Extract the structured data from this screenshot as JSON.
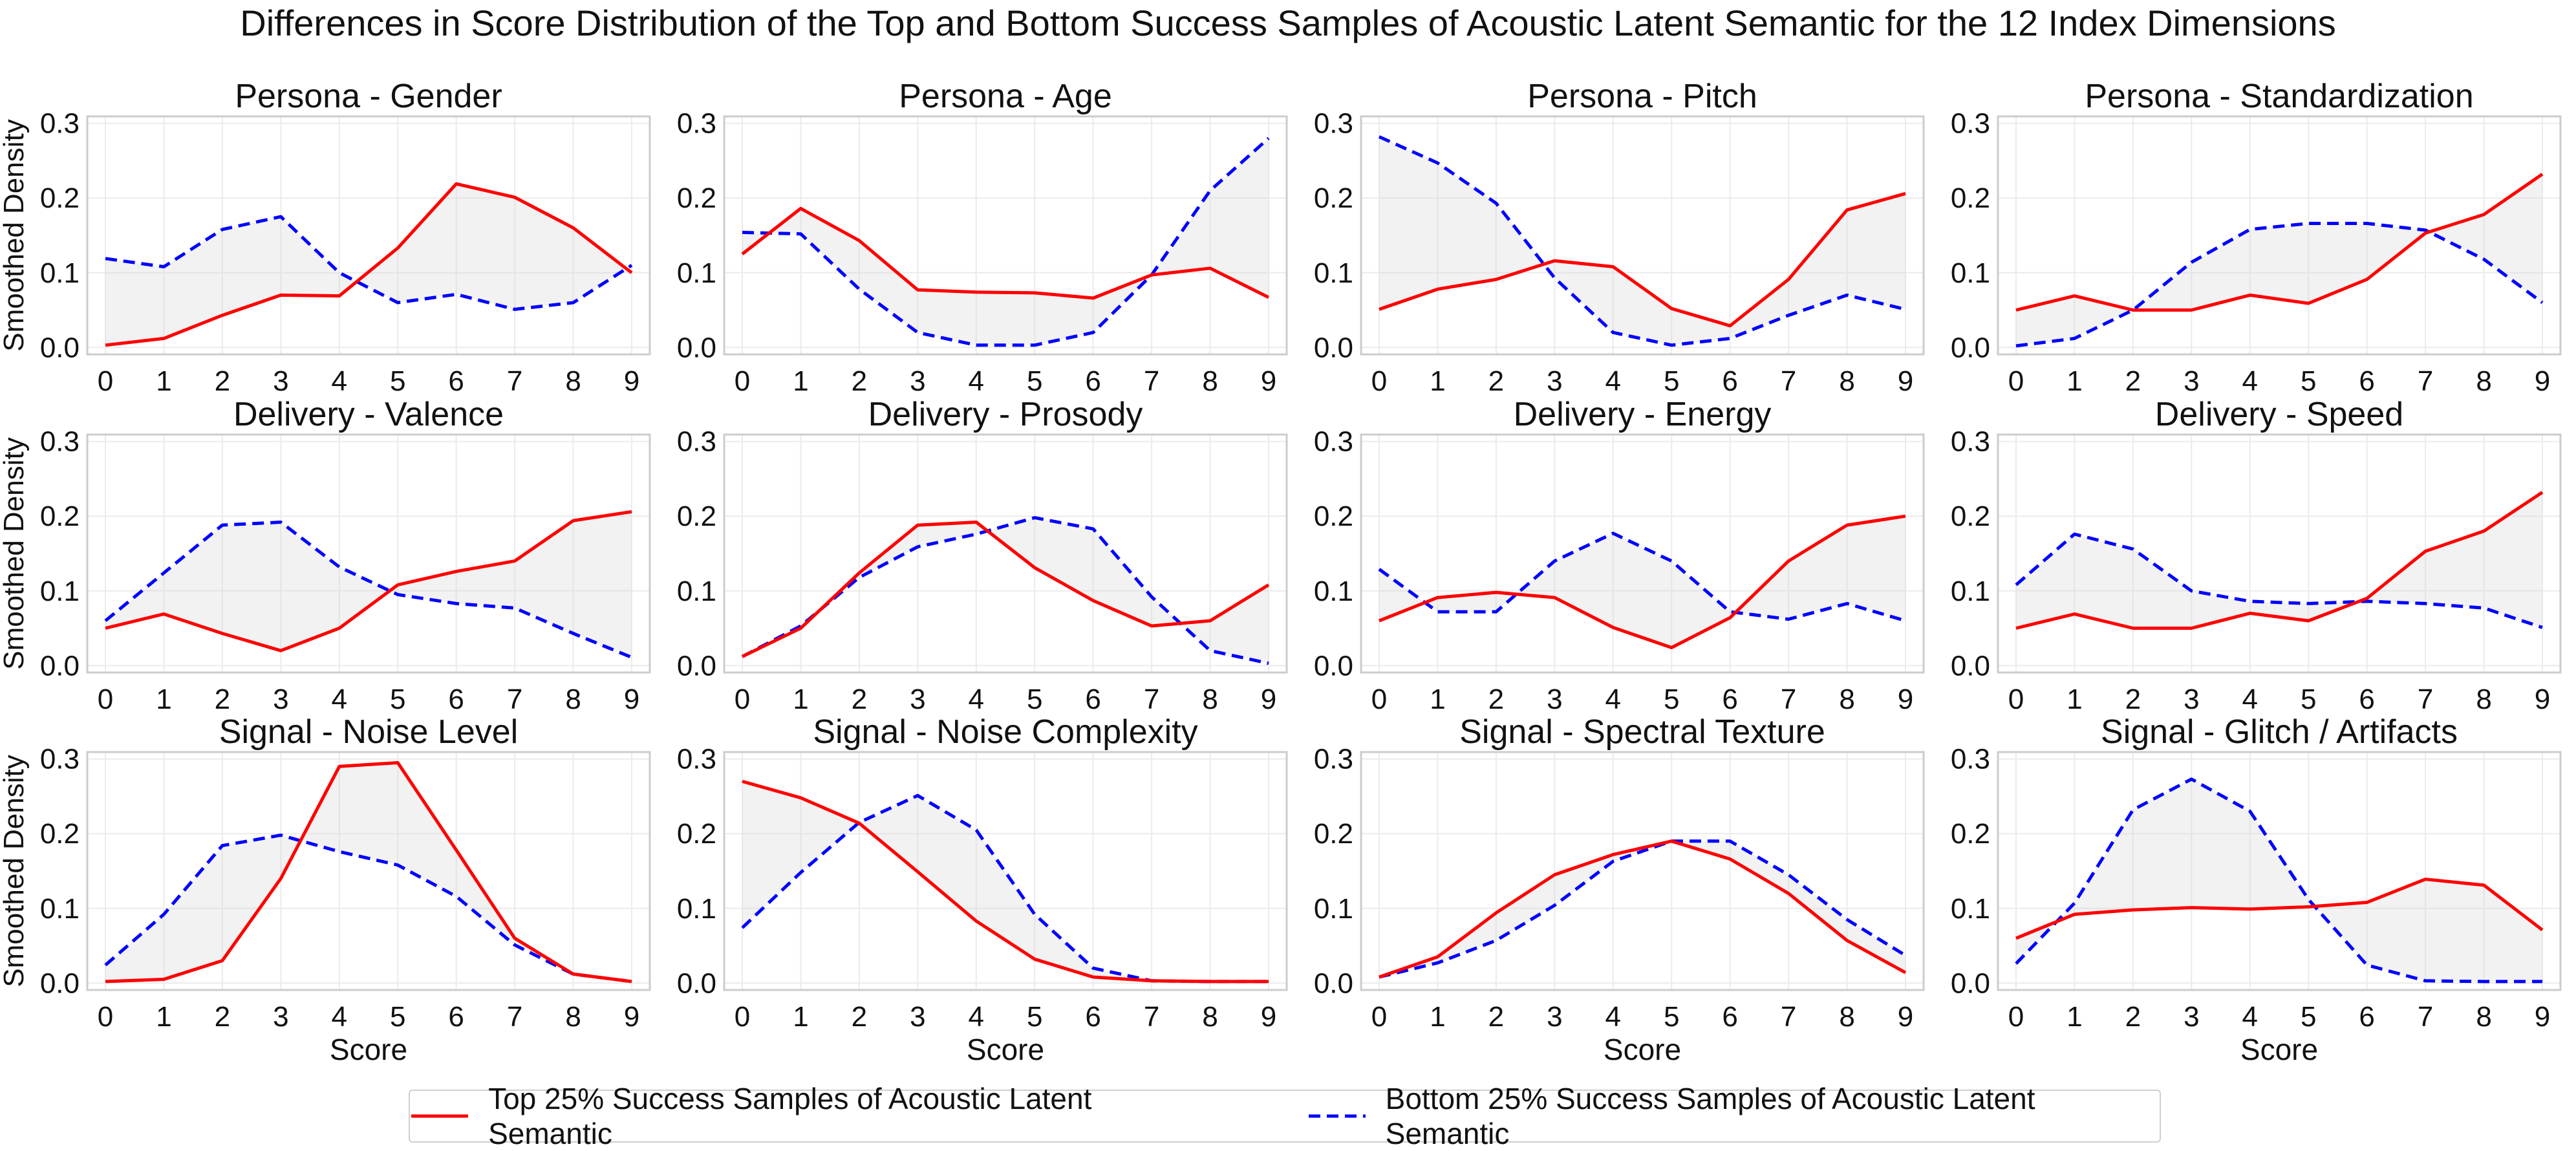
{
  "figure": {
    "title": "Differences in Score Distribution of the Top and Bottom Success Samples of Acoustic Latent Semantic for the 12 Index Dimensions"
  },
  "axis_labels": {
    "xlabel": "Score",
    "ylabel": "Smoothed Density"
  },
  "legend": {
    "placement": "bottom-center",
    "top_label": "Top 25% Success Samples of Acoustic Latent Semantic",
    "bottom_label": "Bottom 25% Success Samples of Acoustic Latent Semantic"
  },
  "colors": {
    "top": "#ff0000",
    "bottom": "#0000ff",
    "fill": "#d3d3d3",
    "grid": "#ebebeb",
    "frame": "#cccccc"
  },
  "chart_data": [
    {
      "type": "line",
      "title": "Persona - Gender",
      "x": [
        0,
        1,
        2,
        3,
        4,
        5,
        6,
        7,
        8,
        9
      ],
      "ylim": [
        0,
        0.3
      ],
      "grid": true,
      "series": [
        {
          "name": "Top 25% Success Samples of Acoustic Latent Semantic",
          "values": [
            0.003,
            0.012,
            0.043,
            0.07,
            0.069,
            0.133,
            0.219,
            0.201,
            0.16,
            0.1
          ]
        },
        {
          "name": "Bottom 25% Success Samples of Acoustic Latent Semantic",
          "values": [
            0.119,
            0.108,
            0.158,
            0.175,
            0.1,
            0.06,
            0.071,
            0.051,
            0.06,
            0.11
          ]
        }
      ]
    },
    {
      "type": "line",
      "title": "Persona - Age",
      "x": [
        0,
        1,
        2,
        3,
        4,
        5,
        6,
        7,
        8,
        9
      ],
      "ylim": [
        0,
        0.3
      ],
      "grid": true,
      "series": [
        {
          "name": "Top 25% Success Samples of Acoustic Latent Semantic",
          "values": [
            0.125,
            0.186,
            0.143,
            0.077,
            0.074,
            0.073,
            0.066,
            0.097,
            0.106,
            0.067
          ]
        },
        {
          "name": "Bottom 25% Success Samples of Acoustic Latent Semantic",
          "values": [
            0.154,
            0.152,
            0.078,
            0.02,
            0.003,
            0.003,
            0.02,
            0.097,
            0.21,
            0.28
          ]
        }
      ]
    },
    {
      "type": "line",
      "title": "Persona - Pitch",
      "x": [
        0,
        1,
        2,
        3,
        4,
        5,
        6,
        7,
        8,
        9
      ],
      "ylim": [
        0,
        0.3
      ],
      "grid": true,
      "series": [
        {
          "name": "Top 25% Success Samples of Acoustic Latent Semantic",
          "values": [
            0.051,
            0.078,
            0.091,
            0.116,
            0.108,
            0.052,
            0.029,
            0.091,
            0.184,
            0.206
          ]
        },
        {
          "name": "Bottom 25% Success Samples of Acoustic Latent Semantic",
          "values": [
            0.282,
            0.247,
            0.193,
            0.093,
            0.02,
            0.003,
            0.012,
            0.043,
            0.07,
            0.051
          ]
        }
      ]
    },
    {
      "type": "line",
      "title": "Persona - Standardization",
      "x": [
        0,
        1,
        2,
        3,
        4,
        5,
        6,
        7,
        8,
        9
      ],
      "ylim": [
        0,
        0.3
      ],
      "grid": true,
      "series": [
        {
          "name": "Top 25% Success Samples of Acoustic Latent Semantic",
          "values": [
            0.05,
            0.069,
            0.05,
            0.05,
            0.07,
            0.059,
            0.091,
            0.153,
            0.178,
            0.232
          ]
        },
        {
          "name": "Bottom 25% Success Samples of Acoustic Latent Semantic",
          "values": [
            0.002,
            0.012,
            0.05,
            0.114,
            0.158,
            0.166,
            0.166,
            0.157,
            0.118,
            0.06
          ]
        }
      ]
    },
    {
      "type": "line",
      "title": "Delivery - Valence",
      "x": [
        0,
        1,
        2,
        3,
        4,
        5,
        6,
        7,
        8,
        9
      ],
      "ylim": [
        0,
        0.3
      ],
      "grid": true,
      "series": [
        {
          "name": "Top 25% Success Samples of Acoustic Latent Semantic",
          "values": [
            0.05,
            0.069,
            0.043,
            0.02,
            0.05,
            0.108,
            0.126,
            0.14,
            0.194,
            0.206
          ]
        },
        {
          "name": "Bottom 25% Success Samples of Acoustic Latent Semantic",
          "values": [
            0.06,
            0.124,
            0.188,
            0.192,
            0.132,
            0.095,
            0.083,
            0.077,
            0.043,
            0.011
          ]
        }
      ]
    },
    {
      "type": "line",
      "title": "Delivery - Prosody",
      "x": [
        0,
        1,
        2,
        3,
        4,
        5,
        6,
        7,
        8,
        9
      ],
      "ylim": [
        0,
        0.3
      ],
      "grid": true,
      "series": [
        {
          "name": "Top 25% Success Samples of Acoustic Latent Semantic",
          "values": [
            0.012,
            0.05,
            0.124,
            0.188,
            0.192,
            0.131,
            0.087,
            0.053,
            0.06,
            0.108
          ]
        },
        {
          "name": "Bottom 25% Success Samples of Acoustic Latent Semantic",
          "values": [
            0.012,
            0.053,
            0.118,
            0.159,
            0.176,
            0.198,
            0.183,
            0.092,
            0.02,
            0.003
          ]
        }
      ]
    },
    {
      "type": "line",
      "title": "Delivery - Energy",
      "x": [
        0,
        1,
        2,
        3,
        4,
        5,
        6,
        7,
        8,
        9
      ],
      "ylim": [
        0,
        0.3
      ],
      "grid": true,
      "series": [
        {
          "name": "Top 25% Success Samples of Acoustic Latent Semantic",
          "values": [
            0.06,
            0.091,
            0.098,
            0.091,
            0.051,
            0.024,
            0.064,
            0.14,
            0.188,
            0.2
          ]
        },
        {
          "name": "Bottom 25% Success Samples of Acoustic Latent Semantic",
          "values": [
            0.129,
            0.072,
            0.072,
            0.14,
            0.177,
            0.14,
            0.072,
            0.062,
            0.083,
            0.06
          ]
        }
      ]
    },
    {
      "type": "line",
      "title": "Delivery - Speed",
      "x": [
        0,
        1,
        2,
        3,
        4,
        5,
        6,
        7,
        8,
        9
      ],
      "ylim": [
        0,
        0.3
      ],
      "grid": true,
      "series": [
        {
          "name": "Top 25% Success Samples of Acoustic Latent Semantic",
          "values": [
            0.05,
            0.069,
            0.05,
            0.05,
            0.07,
            0.06,
            0.09,
            0.153,
            0.18,
            0.232
          ]
        },
        {
          "name": "Bottom 25% Success Samples of Acoustic Latent Semantic",
          "values": [
            0.108,
            0.176,
            0.156,
            0.1,
            0.086,
            0.083,
            0.086,
            0.083,
            0.077,
            0.051
          ]
        }
      ]
    },
    {
      "type": "line",
      "title": "Signal - Noise Level",
      "x": [
        0,
        1,
        2,
        3,
        4,
        5,
        6,
        7,
        8,
        9
      ],
      "ylim": [
        0,
        0.3
      ],
      "grid": true,
      "series": [
        {
          "name": "Top 25% Success Samples of Acoustic Latent Semantic",
          "values": [
            0.002,
            0.005,
            0.03,
            0.14,
            0.29,
            0.295,
            0.178,
            0.06,
            0.012,
            0.002
          ]
        },
        {
          "name": "Bottom 25% Success Samples of Acoustic Latent Semantic",
          "values": [
            0.024,
            0.092,
            0.184,
            0.198,
            0.176,
            0.158,
            0.116,
            0.051,
            0.012,
            0.002
          ]
        }
      ]
    },
    {
      "type": "line",
      "title": "Signal - Noise Complexity",
      "x": [
        0,
        1,
        2,
        3,
        4,
        5,
        6,
        7,
        8,
        9
      ],
      "ylim": [
        0,
        0.3
      ],
      "grid": true,
      "series": [
        {
          "name": "Top 25% Success Samples of Acoustic Latent Semantic",
          "values": [
            0.27,
            0.248,
            0.214,
            0.149,
            0.083,
            0.032,
            0.008,
            0.003,
            0.002,
            0.002
          ]
        },
        {
          "name": "Bottom 25% Success Samples of Acoustic Latent Semantic",
          "values": [
            0.074,
            0.148,
            0.215,
            0.251,
            0.205,
            0.092,
            0.02,
            0.003,
            0.002,
            0.002
          ]
        }
      ]
    },
    {
      "type": "line",
      "title": "Signal - Spectral Texture",
      "x": [
        0,
        1,
        2,
        3,
        4,
        5,
        6,
        7,
        8,
        9
      ],
      "ylim": [
        0,
        0.3
      ],
      "grid": true,
      "series": [
        {
          "name": "Top 25% Success Samples of Acoustic Latent Semantic",
          "values": [
            0.008,
            0.035,
            0.094,
            0.145,
            0.172,
            0.19,
            0.166,
            0.12,
            0.057,
            0.014
          ]
        },
        {
          "name": "Bottom 25% Success Samples of Acoustic Latent Semantic",
          "values": [
            0.008,
            0.027,
            0.057,
            0.104,
            0.163,
            0.19,
            0.19,
            0.145,
            0.085,
            0.037
          ]
        }
      ]
    },
    {
      "type": "line",
      "title": "Signal - Glitch / Artifacts",
      "x": [
        0,
        1,
        2,
        3,
        4,
        5,
        6,
        7,
        8,
        9
      ],
      "ylim": [
        0,
        0.3
      ],
      "grid": true,
      "series": [
        {
          "name": "Top 25% Success Samples of Acoustic Latent Semantic",
          "values": [
            0.06,
            0.092,
            0.098,
            0.101,
            0.099,
            0.102,
            0.108,
            0.139,
            0.131,
            0.071
          ]
        },
        {
          "name": "Bottom 25% Success Samples of Acoustic Latent Semantic",
          "values": [
            0.026,
            0.107,
            0.232,
            0.273,
            0.23,
            0.112,
            0.024,
            0.003,
            0.002,
            0.002
          ]
        }
      ]
    }
  ]
}
